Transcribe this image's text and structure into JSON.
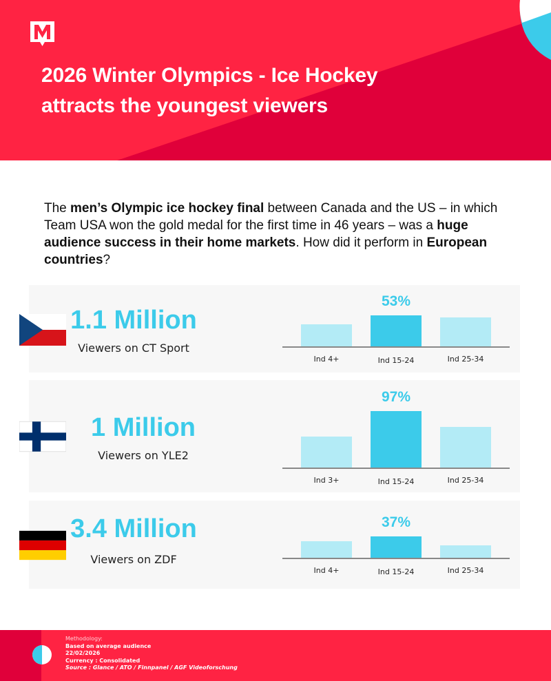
{
  "brand": {
    "primary": "#ff2343",
    "dark": "#e0003a",
    "accent": "#3ccbea",
    "accent_light": "#b3ebf6",
    "logo_letter": "M"
  },
  "header": {
    "title_line1": "2026 Winter Olympics - Ice Hockey",
    "title_line2": "attracts the youngest viewers"
  },
  "intro": {
    "p1": "The ",
    "b1": "men’s Olympic ice hockey final",
    "p2": " between Canada and the US – in which Team USA  won the gold medal for the first time in 46 years – was a ",
    "b2": "huge audience success in their home markets",
    "p3": ". How did it perform in ",
    "b3": "European countries",
    "p4": "?"
  },
  "chart_data": [
    {
      "type": "bar",
      "country": "Czech Republic",
      "flag": "czech-flag",
      "audience": "1.1 Million",
      "channel": "Viewers on CT Sport",
      "categories": [
        "Ind 4+",
        "Ind 15-24",
        "Ind 25-34"
      ],
      "values": [
        38,
        53,
        49
      ],
      "highlight_label": "53%"
    },
    {
      "type": "bar",
      "country": "Finland",
      "flag": "finland-flag",
      "audience": "1 Million",
      "channel": "Viewers on YLE2",
      "categories": [
        "Ind 3+",
        "Ind 15-24",
        "Ind 25-34"
      ],
      "values": [
        53,
        97,
        70
      ],
      "highlight_label": "97%"
    },
    {
      "type": "bar",
      "country": "Germany",
      "flag": "germany-flag",
      "audience": "3.4 Million",
      "channel": "Viewers on ZDF",
      "categories": [
        "Ind 4+",
        "Ind 15-24",
        "Ind 25-34"
      ],
      "values": [
        28,
        37,
        21
      ],
      "highlight_label": "37%"
    }
  ],
  "footer": {
    "heading": "Methodology:",
    "line1": "Based on average audience",
    "line2": "22/02/2026",
    "line3": "Currency : Consolidated",
    "line4": "Source : Glance / ATO / Finnpanel / AGF Videoforschung"
  }
}
